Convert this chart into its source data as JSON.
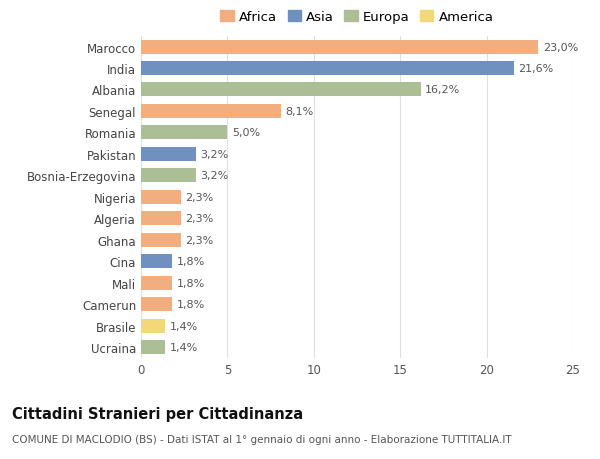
{
  "categories": [
    "Ucraina",
    "Brasile",
    "Camerun",
    "Mali",
    "Cina",
    "Ghana",
    "Algeria",
    "Nigeria",
    "Bosnia-Erzegovina",
    "Pakistan",
    "Romania",
    "Senegal",
    "Albania",
    "India",
    "Marocco"
  ],
  "values": [
    1.4,
    1.4,
    1.8,
    1.8,
    1.8,
    2.3,
    2.3,
    2.3,
    3.2,
    3.2,
    5.0,
    8.1,
    16.2,
    21.6,
    23.0
  ],
  "labels": [
    "1,4%",
    "1,4%",
    "1,8%",
    "1,8%",
    "1,8%",
    "2,3%",
    "2,3%",
    "2,3%",
    "3,2%",
    "3,2%",
    "5,0%",
    "8,1%",
    "16,2%",
    "21,6%",
    "23,0%"
  ],
  "continents": [
    "Europa",
    "America",
    "Africa",
    "Africa",
    "Asia",
    "Africa",
    "Africa",
    "Africa",
    "Europa",
    "Asia",
    "Europa",
    "Africa",
    "Europa",
    "Asia",
    "Africa"
  ],
  "continent_colors": {
    "Africa": "#F2AE7E",
    "Asia": "#7090C0",
    "Europa": "#ABBE96",
    "America": "#F2D878"
  },
  "legend_order": [
    "Africa",
    "Asia",
    "Europa",
    "America"
  ],
  "title": "Cittadini Stranieri per Cittadinanza",
  "subtitle": "COMUNE DI MACLODIO (BS) - Dati ISTAT al 1° gennaio di ogni anno - Elaborazione TUTTITALIA.IT",
  "xlim": [
    0,
    25
  ],
  "xticks": [
    0,
    5,
    10,
    15,
    20,
    25
  ],
  "background_color": "#ffffff",
  "grid_color": "#e0e0e0",
  "bar_height": 0.65,
  "label_fontsize": 8.0,
  "title_fontsize": 10.5,
  "subtitle_fontsize": 7.5,
  "tick_fontsize": 8.5,
  "legend_fontsize": 9.5
}
